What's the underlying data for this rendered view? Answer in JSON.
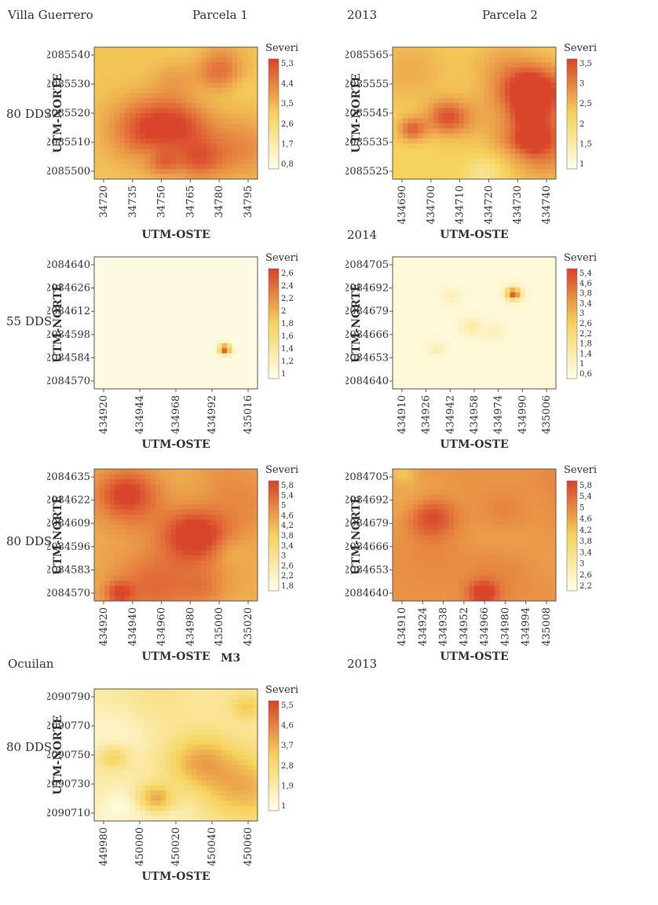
{
  "labels": {
    "site1": "Villa Guerrero",
    "parcel1": "Parcela 1",
    "year1": "2013",
    "parcel2": "Parcela 2",
    "year2": "2014",
    "site2": "Ocuilan",
    "year3": "2013",
    "m3": "M3",
    "row1": "80 DDS",
    "row2": "55 DDS",
    "row3": "80 DDS",
    "row4": "80 DDS"
  },
  "colors": {
    "low": "#fffde8",
    "mid": "#f6d35c",
    "high": "#d9452b"
  },
  "chart_data": [
    {
      "type": "heatmap",
      "ylabel": "UTM-NORTE",
      "xlabel": "UTM-OSTE",
      "legend_title": "Severidad",
      "x_ticks": [
        "34720",
        "34735",
        "34750",
        "34765",
        "34780",
        "34795"
      ],
      "y_ticks": [
        "2085540",
        "2085530",
        "2085520",
        "2085510",
        "2085500"
      ],
      "colorbar_ticks": [
        "5,3",
        "4,4",
        "3,5",
        "2,6",
        "1,7",
        "0,8"
      ],
      "severity_range": [
        0.8,
        5.3
      ],
      "pattern": "mixed-high",
      "seed": 11
    },
    {
      "type": "heatmap",
      "ylabel": "UTM-NORTE",
      "xlabel": "UTM-OSTE",
      "legend_title": "Severidad",
      "x_ticks": [
        "434690",
        "434700",
        "434710",
        "434720",
        "434730",
        "434740"
      ],
      "y_ticks": [
        "2085565",
        "2085555",
        "2085545",
        "2085535",
        "2085525"
      ],
      "colorbar_ticks": [
        "3,5",
        "3",
        "2,5",
        "2",
        "1,5",
        "1"
      ],
      "severity_range": [
        1,
        3.5
      ],
      "pattern": "mixed",
      "seed": 23
    },
    {
      "type": "heatmap",
      "ylabel": "UTM-NORTE",
      "xlabel": "UTM-OSTE",
      "legend_title": "Severidad",
      "x_ticks": [
        "434920",
        "434944",
        "434968",
        "434992",
        "435016"
      ],
      "y_ticks": [
        "2084640",
        "2084626",
        "2084612",
        "2084598",
        "2084584",
        "2084570"
      ],
      "colorbar_ticks": [
        "2,6",
        "2,4",
        "2,2",
        "2",
        "1,8",
        "1,6",
        "1,4",
        "1,2",
        "1"
      ],
      "severity_range": [
        1,
        2.6
      ],
      "pattern": "low",
      "seed": 31
    },
    {
      "type": "heatmap",
      "ylabel": "UTM-NORTE",
      "xlabel": "UTM-OSTE",
      "legend_title": "Severidad",
      "x_ticks": [
        "434910",
        "434926",
        "434942",
        "434958",
        "434974",
        "434990",
        "435006"
      ],
      "y_ticks": [
        "2084705",
        "2084692",
        "2084679",
        "2084666",
        "2084653",
        "2084640"
      ],
      "colorbar_ticks": [
        "5,4",
        "4,6",
        "3,8",
        "3,4",
        "3",
        "2,6",
        "2,2",
        "1,8",
        "1,4",
        "1",
        "0,6"
      ],
      "severity_range": [
        0.6,
        5.4
      ],
      "pattern": "very-low",
      "seed": 43
    },
    {
      "type": "heatmap",
      "ylabel": "UTM-NORTE",
      "xlabel": "UTM-OSTE",
      "legend_title": "Severidad",
      "x_ticks": [
        "434920",
        "434940",
        "434960",
        "434980",
        "435000",
        "435020"
      ],
      "y_ticks": [
        "2084635",
        "2084622",
        "2084609",
        "2084596",
        "2084583",
        "2084570"
      ],
      "colorbar_ticks": [
        "5,8",
        "5,4",
        "5",
        "4,6",
        "4,2",
        "3,8",
        "3,4",
        "3",
        "2,6",
        "2,2",
        "1,8"
      ],
      "severity_range": [
        1.8,
        5.8
      ],
      "pattern": "high",
      "seed": 57
    },
    {
      "type": "heatmap",
      "ylabel": "UTM-NORTE",
      "xlabel": "UTM-OSTE",
      "legend_title": "Severidad",
      "x_ticks": [
        "434910",
        "434924",
        "434938",
        "434952",
        "434966",
        "434980",
        "434994",
        "435008"
      ],
      "y_ticks": [
        "2084705",
        "2084692",
        "2084679",
        "2084666",
        "2084653",
        "2084640"
      ],
      "colorbar_ticks": [
        "5,8",
        "5,4",
        "5",
        "4,6",
        "4,2",
        "3,8",
        "3,4",
        "3",
        "2,6",
        "2,2"
      ],
      "severity_range": [
        2.2,
        5.8
      ],
      "pattern": "very-high",
      "seed": 71
    },
    {
      "type": "heatmap",
      "ylabel": "UTM-NORTE",
      "xlabel": "UTM-OSTE",
      "legend_title": "Severidad",
      "x_ticks": [
        "449980",
        "450000",
        "450020",
        "450040",
        "450060"
      ],
      "y_ticks": [
        "2090790",
        "2090770",
        "2090750",
        "2090730",
        "2090710"
      ],
      "colorbar_ticks": [
        "5,5",
        "4,6",
        "3,7",
        "2,8",
        "1,9",
        "1"
      ],
      "severity_range": [
        1,
        5.5
      ],
      "pattern": "low-spots",
      "seed": 89
    }
  ]
}
